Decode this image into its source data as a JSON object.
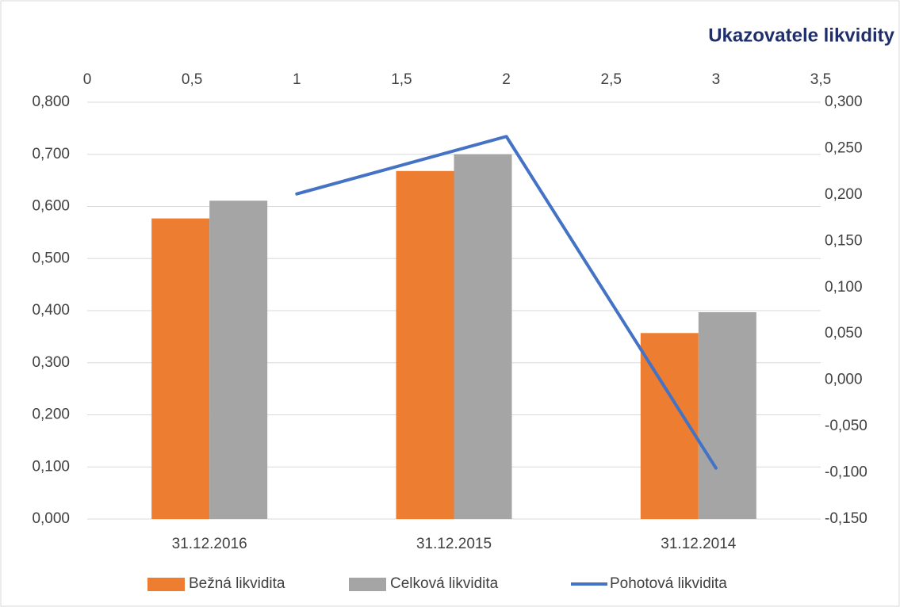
{
  "chart_data": {
    "type": "bar",
    "title": "Ukazovatele likvidity",
    "categories": [
      "31.12.2016",
      "31.12.2015",
      "31.12.2014"
    ],
    "series": [
      {
        "name": "Bežná likvidita",
        "color": "#ed7d31",
        "values": [
          0.577,
          0.668,
          0.357
        ]
      },
      {
        "name": "Celková likvidita",
        "color": "#a5a5a5",
        "values": [
          0.611,
          0.7,
          0.397
        ]
      },
      {
        "name": "Pohotová likvidita",
        "color": "#4472c4",
        "type": "line",
        "axis": "y2",
        "x": [
          1,
          2,
          3
        ],
        "values": [
          0.201,
          0.263,
          -0.095
        ]
      }
    ],
    "ylim": [
      0,
      0.8
    ],
    "yticks": [
      {
        "value": 0,
        "label": "0,000"
      },
      {
        "value": 0.1,
        "label": "0,100"
      },
      {
        "value": 0.2,
        "label": "0,200"
      },
      {
        "value": 0.3,
        "label": "0,300"
      },
      {
        "value": 0.4,
        "label": "0,400"
      },
      {
        "value": 0.5,
        "label": "0,500"
      },
      {
        "value": 0.6,
        "label": "0,600"
      },
      {
        "value": 0.7,
        "label": "0,700"
      },
      {
        "value": 0.8,
        "label": "0,800"
      }
    ],
    "y2lim": [
      -0.15,
      0.3
    ],
    "y2ticks": [
      {
        "value": -0.15,
        "label": "-0,150"
      },
      {
        "value": -0.1,
        "label": "-0,100"
      },
      {
        "value": -0.05,
        "label": "-0,050"
      },
      {
        "value": 0,
        "label": "0,000"
      },
      {
        "value": 0.05,
        "label": "0,050"
      },
      {
        "value": 0.1,
        "label": "0,100"
      },
      {
        "value": 0.15,
        "label": "0,150"
      },
      {
        "value": 0.2,
        "label": "0,200"
      },
      {
        "value": 0.25,
        "label": "0,250"
      },
      {
        "value": 0.3,
        "label": "0,300"
      }
    ],
    "x2lim": [
      0,
      3.5
    ],
    "x2ticks": [
      0,
      {
        "value": 0.5,
        "label": "0,5"
      },
      1,
      {
        "value": 1.5,
        "label": "1,5"
      },
      2,
      {
        "value": 2.5,
        "label": "2,5"
      },
      3,
      {
        "value": 3.5,
        "label": "3,5"
      }
    ],
    "grid": true,
    "legend": "bottom"
  }
}
